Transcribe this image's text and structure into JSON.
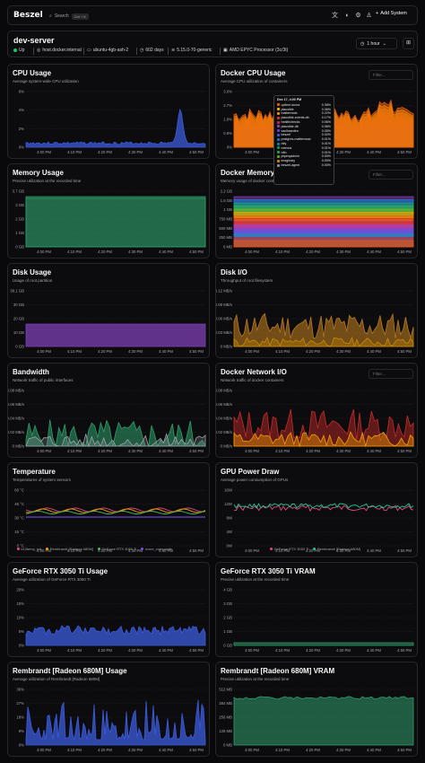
{
  "app": {
    "logo": "Beszel",
    "search_label": "Search",
    "search_kbd": "Ctrl + K",
    "add_system": "Add System"
  },
  "server": {
    "name": "dev-server",
    "status": "Up",
    "host": "host.docker.internal",
    "hostname": "ubuntu-4gb-ash-2",
    "uptime": "602 days",
    "kernel": "5.15.0-70-generic",
    "cpu": "AMD EPYC Processor (3c/3t)",
    "time_range": "1 hour"
  },
  "colors": {
    "bg": "#09090b",
    "card": "#0c0c0e",
    "border": "#27272a",
    "blue": "#3b5bdb",
    "green": "#2f9e6b",
    "purple": "#7e3fb4",
    "orange": "#b7791f",
    "accent": "#22c55e"
  },
  "icons": [
    "search-icon",
    "language-icon",
    "theme-icon",
    "gear-icon",
    "user-icon",
    "plus-icon",
    "clock-icon",
    "grid-icon",
    "server-icon",
    "monitor-icon",
    "calendar-icon",
    "layers-icon",
    "cpu-icon"
  ],
  "x_ticks": [
    "4:00 PM",
    "4:10 PM",
    "4:20 PM",
    "4:30 PM",
    "4:40 PM",
    "4:50 PM"
  ],
  "cards": {
    "cpu": {
      "title": "CPU Usage",
      "subtitle": "Average system-wide CPU utilization",
      "y_ticks": [
        "6%",
        "4%",
        "2%",
        "0%"
      ]
    },
    "docker_cpu": {
      "title": "Docker CPU Usage",
      "subtitle": "Average CPU utilization of containers",
      "filter_placeholder": "Filter...",
      "y_ticks": [
        "3.6%",
        "2.7%",
        "1.8%",
        "0.9%",
        "0%"
      ]
    },
    "memory": {
      "title": "Memory Usage",
      "subtitle": "Precise utilization at the recorded time",
      "y_ticks": [
        "3.7 GB",
        "3 GB",
        "2 GB",
        "1 GB",
        "0 GB"
      ]
    },
    "docker_memory": {
      "title": "Docker Memory Usage",
      "subtitle": "Memory usage of docker containers",
      "filter_placeholder": "Filter...",
      "y_ticks": [
        "2.2 GB",
        "1.5 GB",
        "1 GB",
        "750 MB",
        "500 MB",
        "250 MB",
        "0 MB"
      ]
    },
    "disk": {
      "title": "Disk Usage",
      "subtitle": "Usage of root partition",
      "y_ticks": [
        "38.1 GB",
        "30 GB",
        "20 GB",
        "10 GB",
        "0 GB"
      ]
    },
    "disk_io": {
      "title": "Disk I/O",
      "subtitle": "Throughput of root filesystem",
      "y_ticks": [
        "0.12 MB/s",
        "0.09 MB/s",
        "0.06 MB/s",
        "0.03 MB/s",
        "0 MB/s"
      ]
    },
    "bandwidth": {
      "title": "Bandwidth",
      "subtitle": "Network traffic of public interfaces",
      "y_ticks": [
        "0.08 MB/s",
        "0.06 MB/s",
        "0.04 MB/s",
        "0.02 MB/s",
        "0 MB/s"
      ]
    },
    "docker_net": {
      "title": "Docker Network I/O",
      "subtitle": "Network traffic of docker containers",
      "filter_placeholder": "Filter...",
      "y_ticks": [
        "0.08 MB/s",
        "0.06 MB/s",
        "0.04 MB/s",
        "0.02 MB/s",
        "0 MB/s"
      ]
    },
    "temperature": {
      "title": "Temperature",
      "subtitle": "Temperatures of system sensors",
      "y_ticks": [
        "60 °C",
        "45 °C",
        "30 °C",
        "15 °C",
        "0 °C"
      ],
      "legend": [
        {
          "name": "k10temp_tctl",
          "color": "#e64980"
        },
        {
          "name": "Rembrandt [Radeon 680M]",
          "color": "#f59f00"
        },
        {
          "name": "GeForce RTX 3050 Ti",
          "color": "#40c057"
        },
        {
          "name": "nvme_composite",
          "color": "#7950f2"
        }
      ]
    },
    "gpu_power": {
      "title": "GPU Power Draw",
      "subtitle": "Average power consumption of GPUs",
      "y_ticks": [
        "16W",
        "12W",
        "8W",
        "4W",
        "0W"
      ],
      "legend": [
        {
          "name": "GeForce RTX 3050 Ti",
          "color": "#e64980"
        },
        {
          "name": "Rembrandt [Radeon 680M]",
          "color": "#20c997"
        }
      ]
    },
    "rtx_usage": {
      "title": "GeForce RTX 3050 Ti Usage",
      "subtitle": "Average utilization of GeForce RTX 3050 Ti",
      "y_ticks": [
        "20%",
        "15%",
        "10%",
        "5%",
        "0%"
      ]
    },
    "rtx_vram": {
      "title": "GeForce RTX 3050 Ti VRAM",
      "subtitle": "Precise utilization at the recorded time",
      "y_ticks": [
        "4 GB",
        "3 GB",
        "2 GB",
        "1 GB",
        "0 GB"
      ]
    },
    "radeon_usage": {
      "title": "Rembrandt [Radeon 680M] Usage",
      "subtitle": "Average utilization of Rembrandt [Radeon 680M]",
      "y_ticks": [
        "36%",
        "27%",
        "18%",
        "9%",
        "0%"
      ]
    },
    "radeon_vram": {
      "title": "Rembrandt [Radeon 680M] VRAM",
      "subtitle": "Precise utilization at the recorded time",
      "y_ticks": [
        "512 MB",
        "384 MB",
        "256 MB",
        "128 MB",
        "0 MB"
      ]
    }
  },
  "tooltip": {
    "time": "Dec 17, 4:00 PM",
    "rows": [
      {
        "name": "uptime-kuma",
        "value": "0.38%",
        "color": "#e8590c"
      },
      {
        "name": "plausible",
        "value": "0.36%",
        "color": "#fab005"
      },
      {
        "name": "mattermost",
        "value": "0.22%",
        "color": "#f08c00"
      },
      {
        "name": "plausible-events-db",
        "value": "0.17%",
        "color": "#e03131"
      },
      {
        "name": "healthchecks",
        "value": "0.06%",
        "color": "#c2255c"
      },
      {
        "name": "plausible-db",
        "value": "0.06%",
        "color": "#9c36b5"
      },
      {
        "name": "vaultwarden",
        "value": "0.05%",
        "color": "#6741d9"
      },
      {
        "name": "beszel",
        "value": "0.02%",
        "color": "#3b5bdb"
      },
      {
        "name": "postgres-mattermost",
        "value": "0.01%",
        "color": "#1971c2"
      },
      {
        "name": "ntfy",
        "value": "0.01%",
        "color": "#0c8599"
      },
      {
        "name": "memos",
        "value": "0.01%",
        "color": "#099268"
      },
      {
        "name": "n8n",
        "value": "0.01%",
        "color": "#2f9e44"
      },
      {
        "name": "phpmyadmin",
        "value": "0.00%",
        "color": "#66a80f"
      },
      {
        "name": "imaginary",
        "value": "0.00%",
        "color": "#e67700"
      },
      {
        "name": "beszel-agent",
        "value": "0.00%",
        "color": "#868e96"
      }
    ]
  }
}
